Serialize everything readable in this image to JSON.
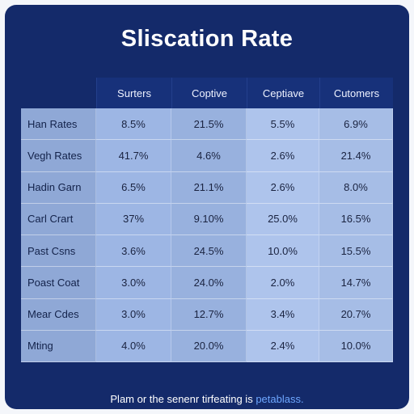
{
  "chart_data": {
    "type": "table",
    "title": "Sliscation Rate",
    "columns": [
      "Surters",
      "Coptive",
      "Ceptiave",
      "Cutomers"
    ],
    "rows": [
      {
        "label": "Han Rates",
        "values": [
          "8.5%",
          "21.5%",
          "5.5%",
          "6.9%"
        ]
      },
      {
        "label": "Vegh Rates",
        "values": [
          "41.7%",
          "4.6%",
          "2.6%",
          "21.4%"
        ]
      },
      {
        "label": "Hadin Garn",
        "values": [
          "6.5%",
          "21.1%",
          "2.6%",
          "8.0%"
        ]
      },
      {
        "label": "Carl Crart",
        "values": [
          "37%",
          "9.10%",
          "25.0%",
          "16.5%"
        ]
      },
      {
        "label": "Past Csns",
        "values": [
          "3.6%",
          "24.5%",
          "10.0%",
          "15.5%"
        ]
      },
      {
        "label": "Poast Coat",
        "values": [
          "3.0%",
          "24.0%",
          "2.0%",
          "14.7%"
        ]
      },
      {
        "label": "Mear Cdes",
        "values": [
          "3.0%",
          "12.7%",
          "3.4%",
          "20.7%"
        ]
      },
      {
        "label": "Mting",
        "values": [
          "4.0%",
          "20.0%",
          "2.4%",
          "10.0%"
        ]
      }
    ]
  },
  "footer": {
    "text": "Plam or the senenr tirfeating is",
    "accent": "petablass."
  },
  "colors": {
    "background": "#142a6a",
    "header": "#17317a",
    "accent": "#6ea7ff"
  }
}
